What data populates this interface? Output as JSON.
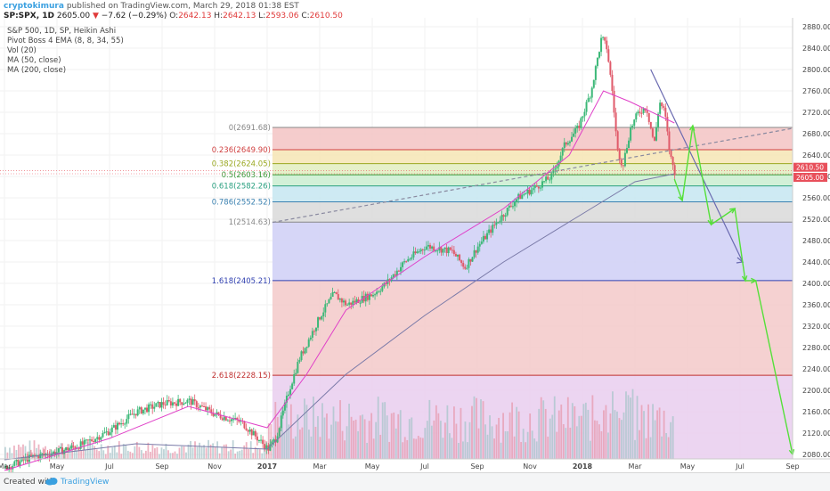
{
  "header": {
    "user": "cryptokimura",
    "published": "published on TradingView.com, March 29, 2018 01:38 EST"
  },
  "ohlc": {
    "symbol": "SP:SPX, 1D",
    "last": "2605.00",
    "arrow": "▼",
    "change": "−7.62 (−0.29%)",
    "o_label": "O:",
    "o": "2642.13",
    "h_label": "H:",
    "h": "2642.13",
    "l_label": "L:",
    "l": "2593.06",
    "c_label": "C:",
    "c": "2610.50"
  },
  "legend": [
    "S&P 500, 1D, SP, Heikin Ashi",
    "Pivot Boss 4 EMA (8, 8, 34, 55)",
    "Vol (20)",
    "MA (50, close)",
    "MA (200, close)"
  ],
  "footer": {
    "created": "Created with",
    "brand": "TradingView"
  },
  "price_tags": [
    {
      "value": "2610.50",
      "price": 2610.5,
      "color": "#e8505b"
    },
    {
      "value": "2605.00",
      "price": 2605.0,
      "color": "#e8505b"
    }
  ],
  "chart_data": {
    "type": "candlestick",
    "title": "S&P 500, 1D, SP, Heikin Ashi",
    "y_axis": {
      "position": "right",
      "range": [
        2070,
        2880
      ],
      "ticks": [
        2080,
        2120,
        2160,
        2200,
        2240,
        2280,
        2320,
        2360,
        2400,
        2440,
        2480,
        2520,
        2560,
        2600,
        2640,
        2680,
        2720,
        2760,
        2800,
        2840,
        2880
      ]
    },
    "x_axis": {
      "labels": [
        {
          "label": "Mar",
          "month": 0,
          "year": false
        },
        {
          "label": "May",
          "month": 2,
          "year": false
        },
        {
          "label": "Jul",
          "month": 4,
          "year": false
        },
        {
          "label": "Sep",
          "month": 6,
          "year": false
        },
        {
          "label": "Nov",
          "month": 8,
          "year": false
        },
        {
          "label": "2017",
          "month": 10,
          "year": true
        },
        {
          "label": "Mar",
          "month": 12,
          "year": false
        },
        {
          "label": "May",
          "month": 14,
          "year": false
        },
        {
          "label": "Jul",
          "month": 16,
          "year": false
        },
        {
          "label": "Sep",
          "month": 18,
          "year": false
        },
        {
          "label": "Nov",
          "month": 20,
          "year": false
        },
        {
          "label": "2018",
          "month": 22,
          "year": true
        },
        {
          "label": "Mar",
          "month": 24,
          "year": false
        },
        {
          "label": "May",
          "month": 26,
          "year": false
        },
        {
          "label": "Jul",
          "month": 28,
          "year": false
        },
        {
          "label": "Sep",
          "month": 30,
          "year": false
        }
      ]
    },
    "price_path": [
      [
        0,
        2055
      ],
      [
        1,
        2075
      ],
      [
        2,
        2085
      ],
      [
        3,
        2100
      ],
      [
        4,
        2125
      ],
      [
        5,
        2160
      ],
      [
        6,
        2175
      ],
      [
        7,
        2180
      ],
      [
        8,
        2155
      ],
      [
        9,
        2140
      ],
      [
        10,
        2090
      ],
      [
        10.3,
        2110
      ],
      [
        10.8,
        2200
      ],
      [
        11.2,
        2260
      ],
      [
        12,
        2340
      ],
      [
        12.5,
        2380
      ],
      [
        13,
        2360
      ],
      [
        14,
        2380
      ],
      [
        14.5,
        2400
      ],
      [
        15.2,
        2440
      ],
      [
        16,
        2470
      ],
      [
        17,
        2460
      ],
      [
        17.5,
        2430
      ],
      [
        18,
        2470
      ],
      [
        18.8,
        2520
      ],
      [
        19.5,
        2560
      ],
      [
        20.2,
        2580
      ],
      [
        20.8,
        2600
      ],
      [
        21.3,
        2660
      ],
      [
        21.8,
        2690
      ],
      [
        22.3,
        2760
      ],
      [
        22.7,
        2860
      ],
      [
        22.9,
        2840
      ],
      [
        23.1,
        2760
      ],
      [
        23.3,
        2650
      ],
      [
        23.5,
        2620
      ],
      [
        23.8,
        2690
      ],
      [
        24.1,
        2720
      ],
      [
        24.4,
        2730
      ],
      [
        24.7,
        2660
      ],
      [
        24.9,
        2740
      ],
      [
        25.1,
        2720
      ],
      [
        25.3,
        2640
      ],
      [
        25.5,
        2605
      ]
    ],
    "moving_averages": [
      {
        "name": "MA (50, close)",
        "color": "#e040c8",
        "points": [
          [
            0,
            2050
          ],
          [
            4,
            2110
          ],
          [
            7,
            2170
          ],
          [
            10,
            2130
          ],
          [
            11.5,
            2230
          ],
          [
            13,
            2350
          ],
          [
            16,
            2450
          ],
          [
            19,
            2540
          ],
          [
            21.5,
            2640
          ],
          [
            22.8,
            2760
          ],
          [
            23.8,
            2740
          ],
          [
            25.5,
            2700
          ]
        ]
      },
      {
        "name": "MA (200, close)",
        "color": "#7a7aa8",
        "points": [
          [
            0,
            2070
          ],
          [
            5,
            2100
          ],
          [
            10,
            2090
          ],
          [
            13,
            2230
          ],
          [
            16,
            2340
          ],
          [
            19,
            2440
          ],
          [
            22,
            2530
          ],
          [
            24,
            2590
          ],
          [
            25.5,
            2605
          ]
        ]
      }
    ],
    "fibonacci": {
      "start_month": 10.2,
      "levels": [
        {
          "ratio": "0",
          "price": 2691.68,
          "label": "0(2691.68)",
          "color": "#888888"
        },
        {
          "ratio": "0.236",
          "price": 2649.9,
          "label": "0.236(2649.90)",
          "color": "#d04040"
        },
        {
          "ratio": "0.382",
          "price": 2624.05,
          "label": "0.382(2624.05)",
          "color": "#9aa820"
        },
        {
          "ratio": "0.5",
          "price": 2603.16,
          "label": "0.5(2603.16)",
          "color": "#3a9a3a"
        },
        {
          "ratio": "0.618",
          "price": 2582.26,
          "label": "0.618(2582.26)",
          "color": "#2aa080"
        },
        {
          "ratio": "0.786",
          "price": 2552.52,
          "label": "0.786(2552.52)",
          "color": "#3a80b0"
        },
        {
          "ratio": "1",
          "price": 2514.63,
          "label": "1(2514.63)",
          "color": "#888888"
        },
        {
          "ratio": "1.618",
          "price": 2405.21,
          "label": "1.618(2405.21)",
          "color": "#3040b0"
        },
        {
          "ratio": "2.618",
          "price": 2228.15,
          "label": "2.618(2228.15)",
          "color": "#c03030"
        }
      ],
      "bands": [
        {
          "from": 2691.68,
          "to": 2649.9,
          "color": "#f4c7c7"
        },
        {
          "from": 2649.9,
          "to": 2624.05,
          "color": "#f6e7b8"
        },
        {
          "from": 2624.05,
          "to": 2603.16,
          "color": "#e3eec3"
        },
        {
          "from": 2603.16,
          "to": 2582.26,
          "color": "#cdeed3"
        },
        {
          "from": 2582.26,
          "to": 2552.52,
          "color": "#c9e8f2"
        },
        {
          "from": 2552.52,
          "to": 2514.63,
          "color": "#dcdcdc"
        },
        {
          "from": 2514.63,
          "to": 2405.21,
          "color": "#d2d2f6"
        },
        {
          "from": 2405.21,
          "to": 2228.15,
          "color": "#f4cccc"
        },
        {
          "from": 2228.15,
          "to": 2070,
          "color": "#ead0f0"
        }
      ]
    },
    "trendlines": [
      {
        "name": "dashed-trendline",
        "color": "#8a8aa0",
        "dashed": true,
        "from": [
          10.2,
          2514
        ],
        "to": [
          30,
          2690
        ]
      },
      {
        "name": "down-trendline",
        "color": "#6a6ab0",
        "dashed": false,
        "from": [
          24.6,
          2800
        ],
        "to": [
          28.1,
          2440
        ]
      }
    ],
    "projection_path": [
      [
        25.5,
        2595
      ],
      [
        25.8,
        2555
      ],
      [
        26.2,
        2695
      ],
      [
        26.9,
        2510
      ],
      [
        27.8,
        2540
      ],
      [
        28.2,
        2405
      ],
      [
        28.6,
        2405
      ],
      [
        30,
        2080
      ]
    ],
    "volume": {
      "baseline_month_start": 0,
      "note": "Volume histogram along bottom of chart"
    }
  }
}
